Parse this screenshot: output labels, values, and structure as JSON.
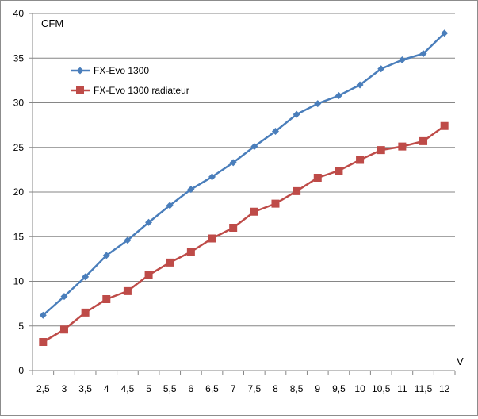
{
  "chart_data": {
    "type": "line",
    "title": "",
    "ylabel": "CFM",
    "xlabel": "V",
    "x": [
      "2,5",
      "3",
      "3,5",
      "4",
      "4,5",
      "5",
      "5,5",
      "6",
      "6,5",
      "7",
      "7,5",
      "8",
      "8,5",
      "9",
      "9,5",
      "10",
      "10,5",
      "11",
      "11,5",
      "12"
    ],
    "ylim": [
      0,
      40
    ],
    "yticks": [
      "0",
      "5",
      "10",
      "15",
      "20",
      "25",
      "30",
      "35",
      "40"
    ],
    "grid": "horizontal",
    "legend": "top-left",
    "series": [
      {
        "name": "FX-Evo 1300",
        "color": "#4a7ebb",
        "marker": "diamond",
        "values": [
          6.2,
          8.3,
          10.5,
          12.9,
          14.6,
          16.6,
          18.5,
          20.3,
          21.7,
          23.3,
          25.1,
          26.8,
          28.7,
          29.9,
          30.8,
          32.0,
          33.8,
          34.8,
          35.5,
          37.8
        ]
      },
      {
        "name": "FX-Evo 1300 radiateur",
        "color": "#be4b48",
        "marker": "square",
        "values": [
          3.2,
          4.6,
          6.5,
          8.0,
          8.9,
          10.7,
          12.1,
          13.3,
          14.8,
          16.0,
          17.8,
          18.7,
          20.1,
          21.6,
          22.4,
          23.6,
          24.7,
          25.1,
          25.7,
          27.4
        ]
      }
    ]
  }
}
